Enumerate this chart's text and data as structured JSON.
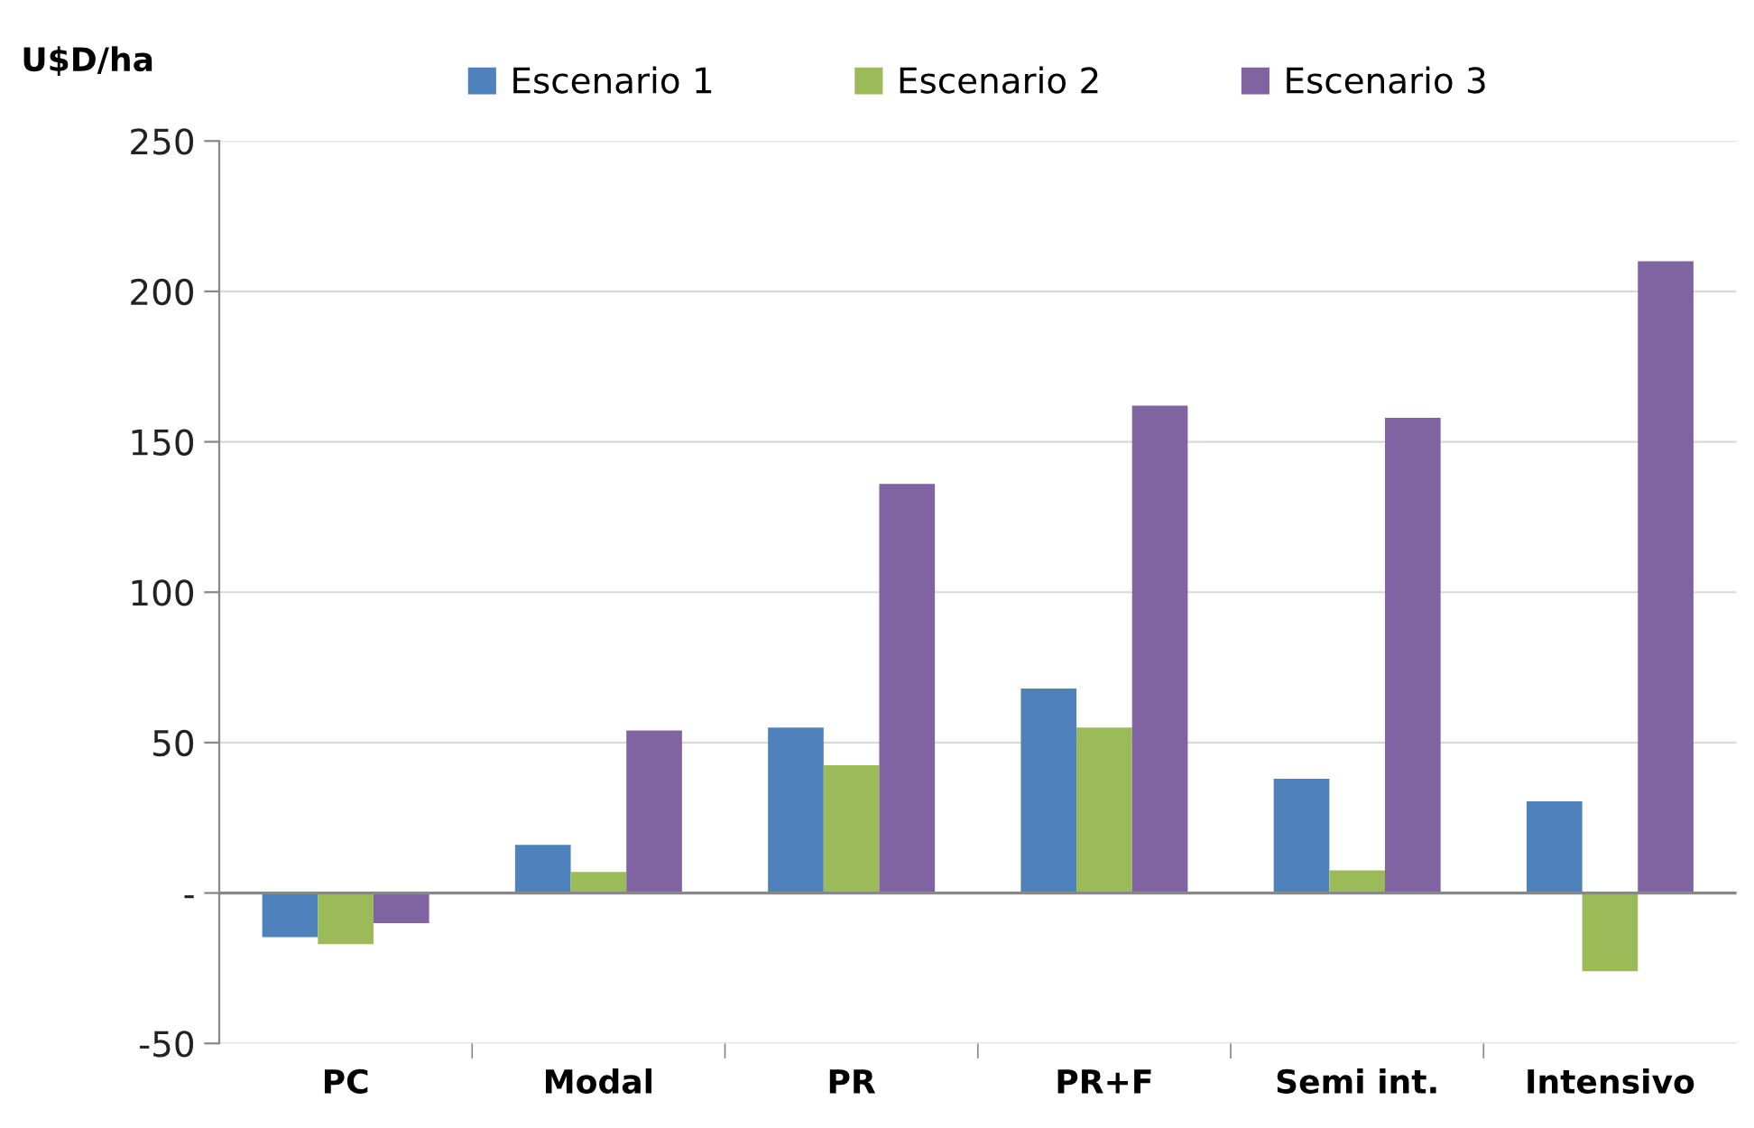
{
  "chart_data": {
    "type": "bar",
    "ylabel": "U$D/ha",
    "categories": [
      "PC",
      "Modal",
      "PR",
      "PR+F",
      "Semi int.",
      "Intensivo"
    ],
    "series": [
      {
        "name": "Escenario 1",
        "color": "#4f81bd",
        "values": [
          -14.7,
          16,
          55,
          68,
          38,
          30.5
        ]
      },
      {
        "name": "Escenario 2",
        "color": "#9bbb59",
        "values": [
          -17,
          7,
          42.5,
          55,
          7.5,
          -26
        ]
      },
      {
        "name": "Escenario 3",
        "color": "#8064a2",
        "values": [
          -10,
          54,
          136,
          162,
          158,
          210
        ]
      }
    ],
    "ylim": [
      -50,
      250
    ],
    "yticks": [
      -50,
      {
        "value": 0,
        "label": "-"
      },
      50,
      100,
      150,
      200,
      250
    ],
    "grid": "y",
    "legend": "top"
  }
}
